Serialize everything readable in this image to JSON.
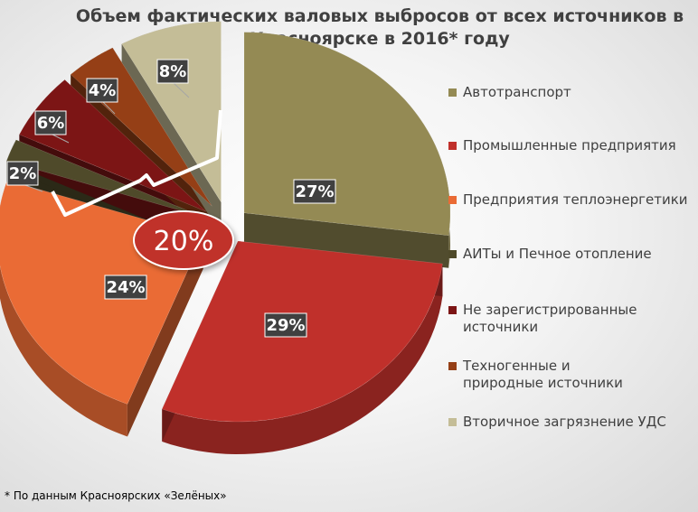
{
  "title": "Объем фактических валовых выбросов от всех источников в Красноярске в 2016* году",
  "chart_data": {
    "type": "pie",
    "title": "Объем фактических валовых выбросов от всех источников в Красноярске в 2016* году",
    "categories": [
      "Автотранспорт",
      "Промышленные предприятия",
      "Предприятия теплоэнергетики",
      "АИТы и Печное отопление",
      "Не зарегистрированные источники",
      "Техногенные и природные источники",
      "Вторичное загрязнение УДС"
    ],
    "values": [
      27,
      29,
      24,
      2,
      6,
      4,
      8
    ],
    "labels": [
      "27%",
      "29%",
      "24%",
      "2%",
      "6%",
      "4%",
      "8%"
    ],
    "colors": [
      "#948a54",
      "#c0302b",
      "#ea6b35",
      "#4f4a2a",
      "#7c1515",
      "#953f16",
      "#c4bd97"
    ],
    "legend_position": "right",
    "callout": "20%"
  },
  "footnote": "* По данным Красноярских «Зелёных»"
}
